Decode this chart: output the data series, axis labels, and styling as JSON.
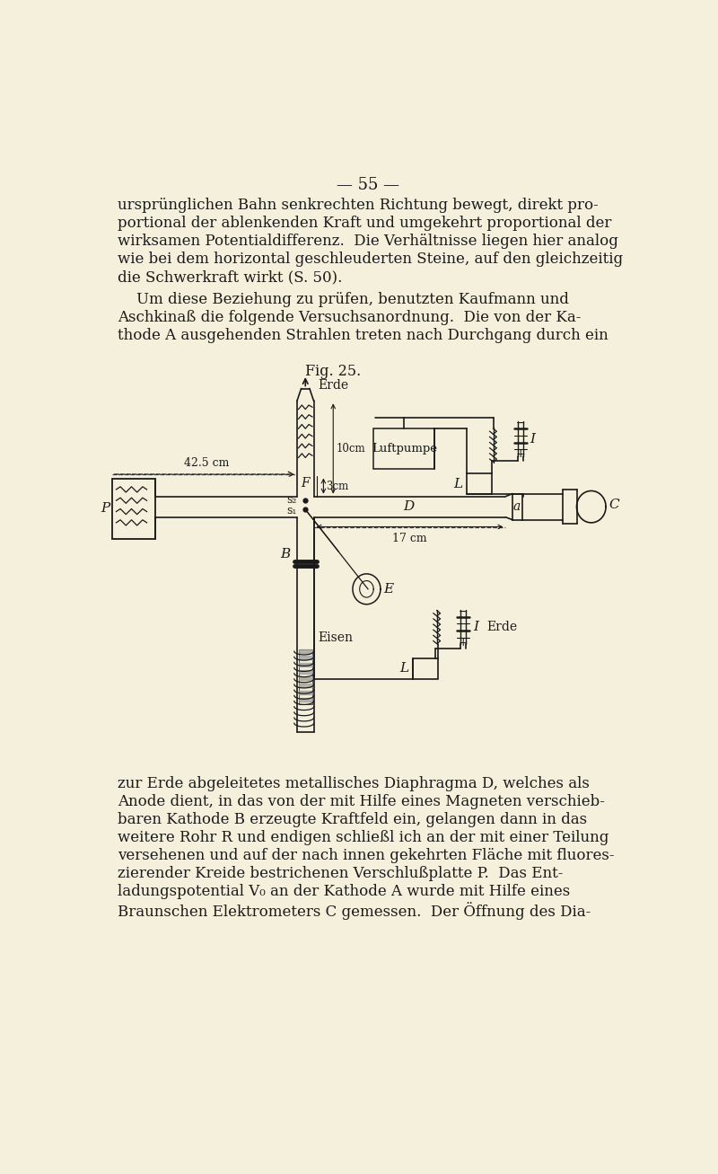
{
  "bg_color": "#f5f0dc",
  "text_color": "#1a1a1a",
  "page_number": "55",
  "fig_caption": "Fig. 25.",
  "para1_lines": [
    "ursprünglichen Bahn senkrechten Richtung bewegt, direkt pro-",
    "portional der ablenkenden Kraft und umgekehrt proportional der",
    "wirksamen Potentialdifferenz.  Die Verhältnisse liegen hier analog",
    "wie bei dem horizontal geschleuderten Steine, auf den gleichzeitig",
    "die Schwerkraft wirkt (S. 50)."
  ],
  "para2_lines": [
    "    Um diese Beziehung zu prüfen, benutzten Kaufmann und",
    "Aschkinaß die folgende Versuchsanordnung.  Die von der Ka-",
    "thode A ausgehenden Strahlen treten nach Durchgang durch ein"
  ],
  "para3_lines": [
    "zur Erde abgeleitetes metallisches Diaphragma D, welches als",
    "Anode dient, in das von der mit Hilfe eines Magneten verschieb-",
    "baren Kathode B erzeugte Kraftfeld ein, gelangen dann in das",
    "weitere Rohr R und endigen schließl ich an der mit einer Teilung",
    "versehenen und auf der nach innen gekehrten Fläche mit fluores-",
    "zierender Kreide bestrichenen Verschlußplatte P.  Das Ent-",
    "ladungspotential V₀ an der Kathode A wurde mit Hilfe eines",
    "Braunschen Elektrometers C gemessen.  Der Öffnung des Dia-"
  ]
}
